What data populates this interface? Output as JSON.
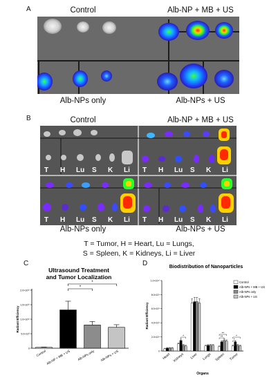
{
  "panels": {
    "a": {
      "letter": "A",
      "labels": {
        "top_left": "Control",
        "top_right": "Alb-NP + MB + US",
        "bottom_left": "Alb-NPs only",
        "bottom_right": "Alb-NPs + US"
      }
    },
    "b": {
      "letter": "B",
      "labels": {
        "top_left": "Control",
        "top_right": "Alb-NP + MB + US",
        "bottom_left": "Alb-NPs only",
        "bottom_right": "Alb-NPs + US"
      },
      "organ_letters": [
        "T",
        "H",
        "Lu",
        "S",
        "K",
        "Li"
      ],
      "key_line1": "T = Tumor, H = Heart, Lu = Lungs,",
      "key_line2": "S = Spleen, K = Kidneys, Li = Liver"
    },
    "c": {
      "letter": "C"
    },
    "d": {
      "letter": "D"
    }
  },
  "chart_data": [
    {
      "type": "bar",
      "title": "Ultrasound Treatment and Tumor Localization",
      "title_lines": [
        "Ultrasound Treatment",
        "and Tumor Localization"
      ],
      "xlabel": "",
      "ylabel": "Radiant Efficiency",
      "ylim": [
        0,
        20000000000
      ],
      "yticks": [
        "0",
        "5.0×10⁹",
        "1.0×10¹⁰",
        "1.5×10¹⁰",
        "2.0×10¹⁰"
      ],
      "categories": [
        "Control",
        "Alb-NP + MB + US",
        "Alb-NPs only",
        "Alb-NPs + US"
      ],
      "values": [
        300000000,
        13200000000,
        8000000000,
        7200000000
      ],
      "errors": [
        100000000,
        3000000000,
        1200000000,
        900000000
      ],
      "bar_colors": [
        "#ffffff",
        "#000000",
        "#8c8c8c",
        "#c4c4c4"
      ],
      "significance": [
        "*",
        "*"
      ]
    },
    {
      "type": "bar",
      "title": "Biodistribution of Nanoparticles",
      "xlabel": "Organs",
      "ylabel": "Radiant Efficiency",
      "ylim": [
        0,
        10000000000
      ],
      "yticks": [
        "0",
        "2.0×10⁹",
        "4.0×10⁹",
        "6.0×10⁹",
        "8.0×10⁹",
        "1.0×10¹⁰"
      ],
      "categories": [
        "Heart",
        "Kidneys",
        "Liver",
        "Lungs",
        "Spleen",
        "Tumor"
      ],
      "series": [
        {
          "name": "Control",
          "color": "#ffffff",
          "values": [
            300000000,
            1000000000,
            6800000000,
            700000000,
            600000000,
            700000000
          ]
        },
        {
          "name": "Alb-NPs + MB + US",
          "color": "#000000",
          "values": [
            400000000,
            1500000000,
            7000000000,
            800000000,
            1300000000,
            1300000000
          ]
        },
        {
          "name": "Alb-NPs only",
          "color": "#8c8c8c",
          "values": [
            400000000,
            800000000,
            7000000000,
            800000000,
            1500000000,
            800000000
          ]
        },
        {
          "name": "Alb-NPs + US",
          "color": "#c4c4c4",
          "values": [
            400000000,
            700000000,
            6800000000,
            800000000,
            1400000000,
            700000000
          ]
        }
      ],
      "significance": [
        "*",
        "**",
        "**",
        "*",
        "*"
      ],
      "legend_position": "top-right"
    }
  ]
}
